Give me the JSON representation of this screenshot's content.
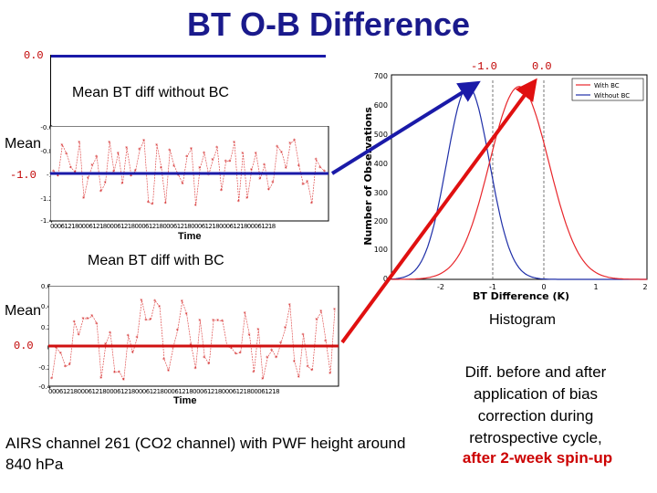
{
  "title": "BT O-B Difference",
  "top_label_zero": "0.0",
  "without_bc": {
    "label": "Mean BT diff without BC",
    "mean_label": "Mean",
    "mean_value_label": "-1.0",
    "yticks": [
      "-0.6",
      "-0.8",
      "-1",
      "-1.2",
      "-1.4"
    ],
    "xtick_text": "0006121800061218000612180006121800061218000612180006121800061218",
    "xlabel": "Time"
  },
  "with_bc": {
    "label": "Mean BT diff with BC",
    "mean_label": "Mean",
    "mean_value_label": "0.0",
    "yticks": [
      "0.6",
      "0.4",
      "0.2",
      "0",
      "-0.2",
      "-0.4"
    ],
    "xtick_text": "0006121800061218000612180006121800061218000612180006121800061218",
    "xlabel": "Time"
  },
  "histogram": {
    "label_minus": "-1.0",
    "label_zero": "0.0",
    "ylabel": "Number of Observations",
    "xlabel": "BT Difference (K)",
    "yticks": [
      "700",
      "600",
      "500",
      "400",
      "300",
      "200",
      "100",
      "0"
    ],
    "xticks": [
      "-2",
      "-1",
      "0",
      "1",
      "2"
    ],
    "legend": [
      "With BC",
      "Without BC"
    ],
    "caption": "Histogram",
    "colors": {
      "with_bc": "#e8262b",
      "without_bc": "#1f2fa8"
    }
  },
  "channel_note": "AIRS channel 261 (CO2 channel) with PWF height around 840 hPa",
  "diff_note": [
    "Diff. before and after",
    "application of bias",
    "correction during",
    "retrospective cycle,"
  ],
  "spinup_note": "after 2-week spin-up"
}
